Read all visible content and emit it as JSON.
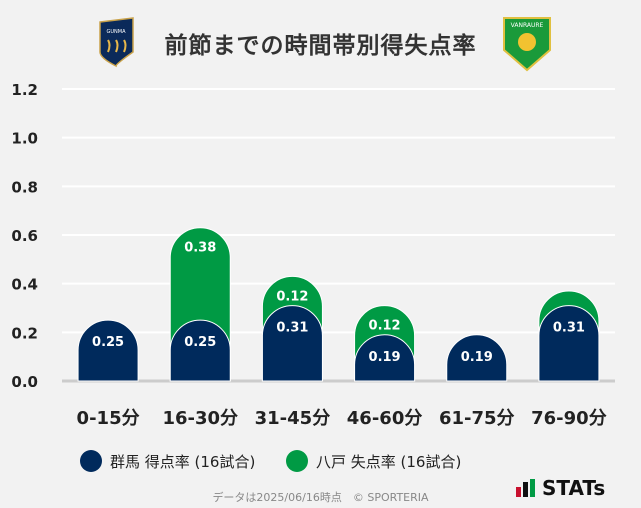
{
  "chart_data": {
    "type": "bar",
    "stacked": true,
    "title": "前節までの時間帯別得失点率",
    "categories": [
      "0-15分",
      "16-30分",
      "31-45分",
      "46-60分",
      "61-75分",
      "76-90分"
    ],
    "series": [
      {
        "name": "群馬 得点率 (16試合)",
        "color": "#002a5c",
        "values": [
          0.25,
          0.25,
          0.31,
          0.19,
          0.19,
          0.31
        ],
        "labels": [
          "0.25",
          "0.25",
          "0.31",
          "0.19",
          "0.19",
          "0.31"
        ]
      },
      {
        "name": "八戸 失点率 (16試合)",
        "color": "#009a44",
        "values": [
          0,
          0.38,
          0.12,
          0.12,
          0,
          0.06
        ],
        "labels": [
          "",
          "0.38",
          "0.12",
          "0.12",
          "",
          ""
        ]
      }
    ],
    "yticks": [
      "0.0",
      "0.2",
      "0.4",
      "0.6",
      "0.8",
      "1.0",
      "1.2"
    ],
    "ylim": [
      0,
      1.2
    ],
    "grid": true,
    "legend": "bottom"
  },
  "logos": {
    "left": "GUNMA",
    "right": "VANRAURE"
  },
  "footer": "データは2025/06/16時点　© SPORTERIA",
  "brand": "STATs"
}
